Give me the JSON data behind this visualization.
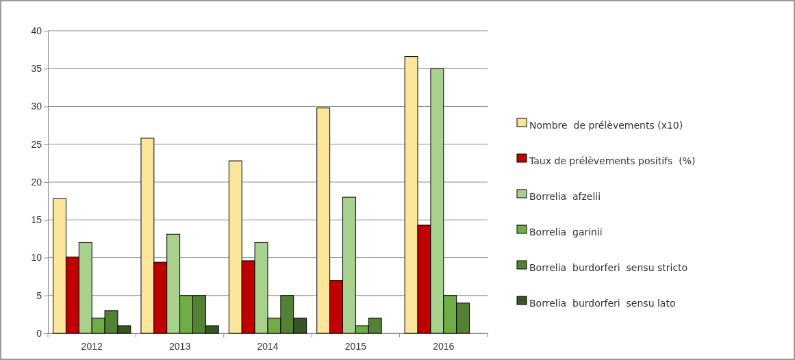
{
  "chart_data": {
    "type": "bar",
    "categories": [
      "2012",
      "2013",
      "2014",
      "2015",
      "2016"
    ],
    "series": [
      {
        "name": "Nombre  de prélèvements (x10)",
        "color": "#fde59a",
        "values": [
          17.8,
          25.8,
          22.8,
          29.8,
          36.6
        ]
      },
      {
        "name": "Taux de prélèvements positifs  (%)",
        "color": "#c00000",
        "values": [
          10.1,
          9.4,
          9.6,
          7,
          14.3
        ]
      },
      {
        "name": "Borrelia  afzelii",
        "color": "#a9d18e",
        "values": [
          12,
          13.1,
          12,
          18,
          35
        ]
      },
      {
        "name": "Borrelia  garinii",
        "color": "#70ad47",
        "values": [
          2,
          5,
          2,
          1,
          5
        ]
      },
      {
        "name": "Borrelia  burdorferi  sensu stricto",
        "color": "#548235",
        "values": [
          3,
          5,
          5,
          2,
          4
        ]
      },
      {
        "name": "Borrelia  burdorferi  sensu lato",
        "color": "#375623",
        "values": [
          1,
          1,
          2,
          null,
          null
        ]
      }
    ],
    "ylim": [
      0,
      40
    ],
    "yticks": [
      0,
      5,
      10,
      15,
      20,
      25,
      30,
      35,
      40
    ],
    "grid": "y",
    "legend": "right"
  }
}
